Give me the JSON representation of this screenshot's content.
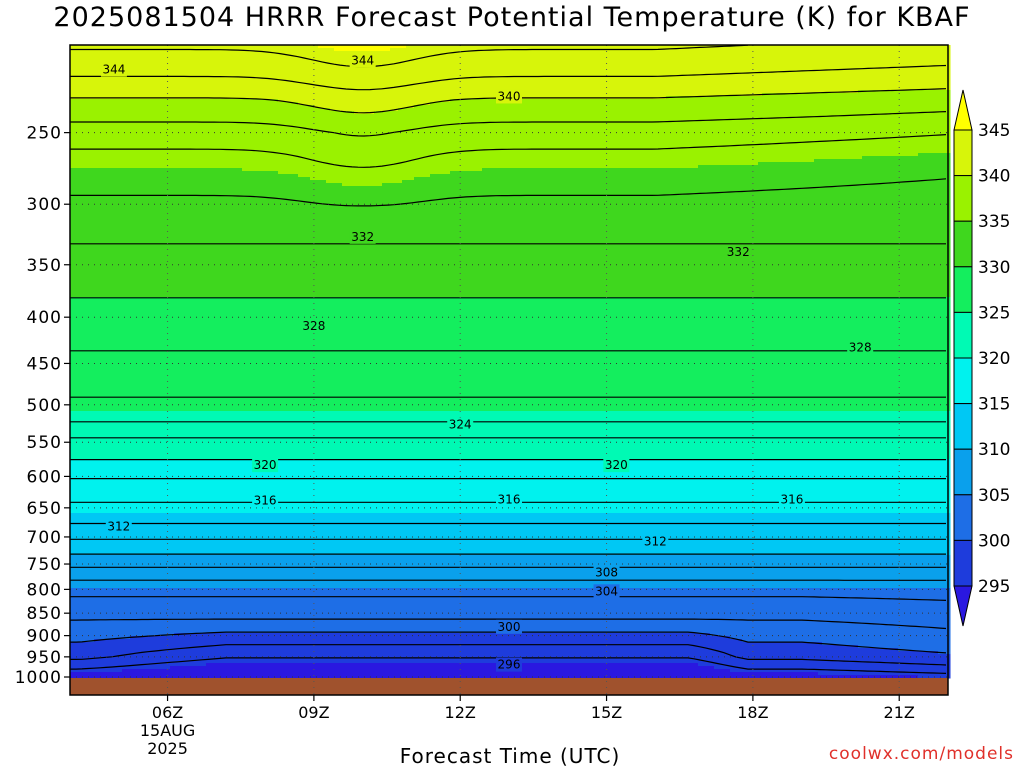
{
  "title": "2025081504 HRRR Forecast Potential Temperature (K) for KBAF",
  "xlabel": "Forecast Time (UTC)",
  "credit": "coolwx.com/models",
  "chart_data": {
    "type": "heatmap",
    "title": "2025081504 HRRR Forecast Potential Temperature (K) for KBAF",
    "xlabel": "Forecast Time (UTC)",
    "ylabel": "",
    "x_range_hours_utc": [
      4,
      22
    ],
    "x_ticks": [
      {
        "hour": 6,
        "label": "06Z",
        "sub": [
          "15AUG",
          "2025"
        ]
      },
      {
        "hour": 9,
        "label": "09Z",
        "sub": []
      },
      {
        "hour": 12,
        "label": "12Z",
        "sub": []
      },
      {
        "hour": 15,
        "label": "15Z",
        "sub": []
      },
      {
        "hour": 18,
        "label": "18Z",
        "sub": []
      },
      {
        "hour": 21,
        "label": "21Z",
        "sub": []
      }
    ],
    "y_axis": {
      "scale": "log-pressure",
      "inverted": true,
      "range_hpa": [
        1000,
        200
      ],
      "ticks": [
        250,
        300,
        350,
        400,
        450,
        500,
        550,
        600,
        650,
        700,
        750,
        800,
        850,
        900,
        950,
        1000
      ]
    },
    "grid": true,
    "colorbar": {
      "ticks": [
        345,
        340,
        335,
        330,
        325,
        320,
        315,
        310,
        305,
        300,
        295
      ],
      "bands": [
        {
          "range": "above 345",
          "color": "#ffff00"
        },
        {
          "range": "340-345",
          "color": "#d7f50a"
        },
        {
          "range": "335-340",
          "color": "#9af200"
        },
        {
          "range": "330-335",
          "color": "#3fd71e"
        },
        {
          "range": "325-330",
          "color": "#14ee5e"
        },
        {
          "range": "320-325",
          "color": "#00fab4"
        },
        {
          "range": "315-320",
          "color": "#00f2ee"
        },
        {
          "range": "310-315",
          "color": "#00c8f4"
        },
        {
          "range": "305-310",
          "color": "#0aa0ec"
        },
        {
          "range": "300-305",
          "color": "#1e6ee6"
        },
        {
          "range": "295-300",
          "color": "#1e3cdc"
        },
        {
          "range": "below 295",
          "color": "#2a18e0"
        }
      ]
    },
    "ground_color": "#a0522d",
    "contour_labels": [
      {
        "theta": 344,
        "hour": 4.9,
        "p": 213
      },
      {
        "theta": 344,
        "hour": 10.0,
        "p": 208
      },
      {
        "theta": 340,
        "hour": 13.0,
        "p": 228
      },
      {
        "theta": 332,
        "hour": 10.0,
        "p": 326
      },
      {
        "theta": 332,
        "hour": 17.7,
        "p": 339
      },
      {
        "theta": 328,
        "hour": 9.0,
        "p": 409
      },
      {
        "theta": 328,
        "hour": 20.2,
        "p": 432
      },
      {
        "theta": 324,
        "hour": 12.0,
        "p": 526
      },
      {
        "theta": 320,
        "hour": 8.0,
        "p": 583
      },
      {
        "theta": 320,
        "hour": 15.2,
        "p": 583
      },
      {
        "theta": 316,
        "hour": 8.0,
        "p": 638
      },
      {
        "theta": 316,
        "hour": 13.0,
        "p": 636
      },
      {
        "theta": 316,
        "hour": 18.8,
        "p": 636
      },
      {
        "theta": 312,
        "hour": 5.0,
        "p": 682
      },
      {
        "theta": 312,
        "hour": 16.0,
        "p": 708
      },
      {
        "theta": 308,
        "hour": 15.0,
        "p": 766
      },
      {
        "theta": 304,
        "hour": 15.0,
        "p": 804
      },
      {
        "theta": 300,
        "hour": 13.0,
        "p": 880
      },
      {
        "theta": 296,
        "hour": 13.0,
        "p": 969
      }
    ]
  }
}
